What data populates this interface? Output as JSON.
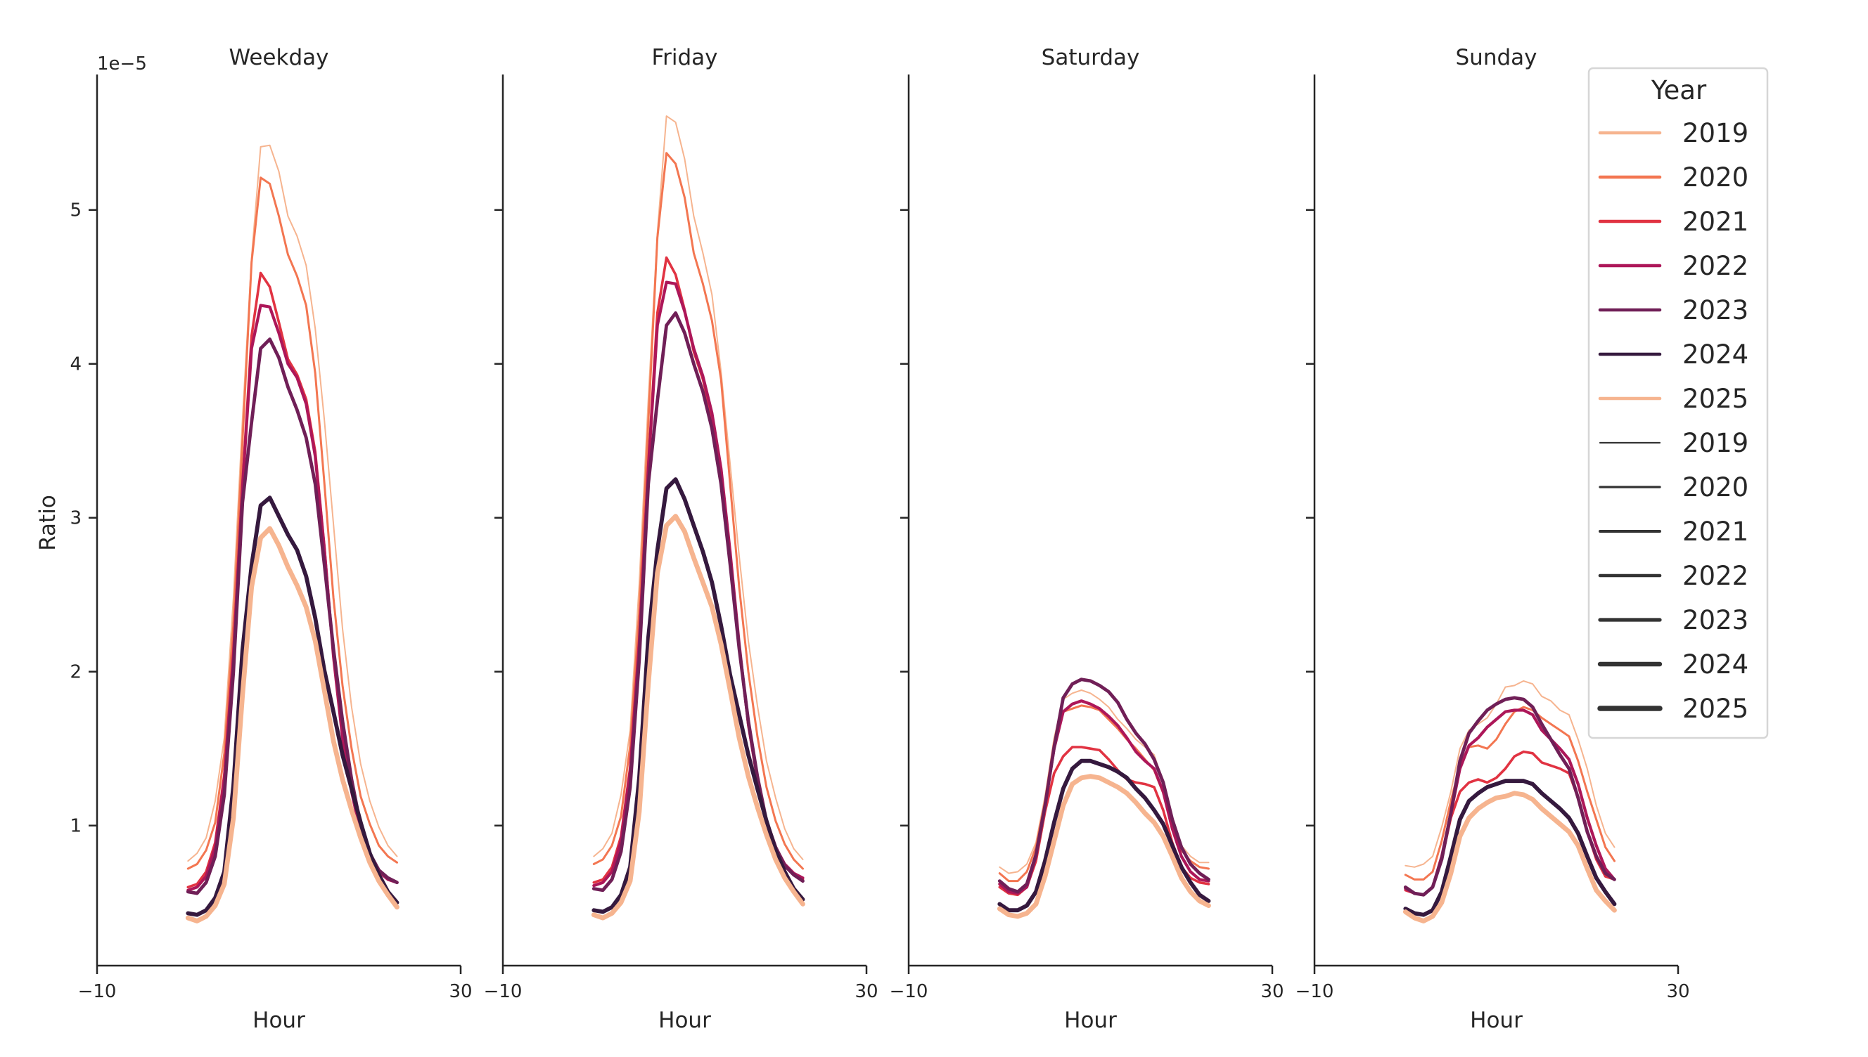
{
  "chart_data": {
    "type": "line",
    "xlabel": "Hour",
    "ylabel": "Ratio",
    "y_offset_label": "1e−5",
    "xlim": [
      -10,
      30
    ],
    "ylim": [
      0.09,
      5.88
    ],
    "xticks": [
      -10,
      30
    ],
    "xtick_labels": [
      "−10",
      "30"
    ],
    "yticks": [
      1,
      2,
      3,
      4,
      5
    ],
    "ytick_labels": [
      "1",
      "2",
      "3",
      "4",
      "5"
    ],
    "grid": false,
    "legend_placement": "right",
    "x": [
      0,
      1,
      2,
      3,
      4,
      5,
      6,
      7,
      8,
      9,
      10,
      11,
      12,
      13,
      14,
      15,
      16,
      17,
      18,
      19,
      20,
      21,
      22,
      23
    ],
    "legend": {
      "title": "Year",
      "color_entries": [
        "2019",
        "2020",
        "2021",
        "2022",
        "2023",
        "2024",
        "2025"
      ],
      "size_entries": [
        "2019",
        "2020",
        "2021",
        "2022",
        "2023",
        "2024",
        "2025"
      ],
      "line_color": "#333333"
    },
    "colors": {
      "2019": "#f6b48f",
      "2020": "#f37651",
      "2021": "#e13342",
      "2022": "#ad1759",
      "2023": "#701f57",
      "2024": "#35193e",
      "2025": "#f6b48f"
    },
    "panels": [
      {
        "title": "Weekday",
        "series": [
          {
            "name": "2019",
            "values": [
              0.77,
              0.82,
              0.92,
              1.16,
              1.57,
              2.48,
              3.64,
              4.69,
              5.41,
              5.42,
              5.25,
              4.96,
              4.83,
              4.64,
              4.23,
              3.64,
              2.96,
              2.28,
              1.77,
              1.4,
              1.16,
              0.99,
              0.87,
              0.8
            ]
          },
          {
            "name": "2020",
            "values": [
              0.72,
              0.75,
              0.84,
              1.02,
              1.47,
              2.31,
              3.5,
              4.66,
              5.21,
              5.17,
              4.96,
              4.71,
              4.57,
              4.38,
              3.94,
              3.23,
              2.48,
              1.91,
              1.5,
              1.19,
              1.01,
              0.87,
              0.8,
              0.76
            ]
          },
          {
            "name": "2021",
            "values": [
              0.6,
              0.62,
              0.7,
              0.89,
              1.33,
              2.14,
              3.23,
              4.18,
              4.59,
              4.5,
              4.27,
              4.03,
              3.93,
              3.77,
              3.43,
              2.82,
              2.11,
              1.58,
              1.23,
              0.96,
              0.8,
              0.7,
              0.65,
              0.63
            ]
          },
          {
            "name": "2022",
            "values": [
              0.58,
              0.6,
              0.67,
              0.86,
              1.3,
              2.1,
              3.2,
              4.1,
              4.38,
              4.37,
              4.2,
              4.0,
              3.91,
              3.74,
              3.4,
              2.8,
              2.1,
              1.57,
              1.22,
              0.95,
              0.8,
              0.7,
              0.65,
              0.63
            ]
          },
          {
            "name": "2023",
            "values": [
              0.57,
              0.56,
              0.63,
              0.8,
              1.2,
              2.0,
              3.1,
              3.62,
              4.1,
              4.16,
              4.04,
              3.85,
              3.7,
              3.52,
              3.22,
              2.7,
              2.15,
              1.68,
              1.3,
              1.0,
              0.82,
              0.71,
              0.66,
              0.63
            ]
          },
          {
            "name": "2024",
            "values": [
              0.43,
              0.42,
              0.45,
              0.53,
              0.7,
              1.26,
              2.14,
              2.69,
              3.08,
              3.13,
              3.01,
              2.89,
              2.79,
              2.62,
              2.35,
              2.01,
              1.74,
              1.46,
              1.24,
              1.02,
              0.82,
              0.68,
              0.57,
              0.5
            ]
          },
          {
            "name": "2025",
            "values": [
              0.4,
              0.38,
              0.41,
              0.48,
              0.62,
              1.05,
              1.85,
              2.55,
              2.87,
              2.93,
              2.82,
              2.68,
              2.56,
              2.42,
              2.2,
              1.88,
              1.55,
              1.3,
              1.1,
              0.92,
              0.76,
              0.64,
              0.55,
              0.47
            ]
          }
        ]
      },
      {
        "title": "Friday",
        "series": [
          {
            "name": "2019",
            "values": [
              0.8,
              0.85,
              0.95,
              1.2,
              1.62,
              2.57,
              3.77,
              4.85,
              5.61,
              5.57,
              5.33,
              4.96,
              4.72,
              4.45,
              3.95,
              3.35,
              2.75,
              2.2,
              1.78,
              1.42,
              1.18,
              0.98,
              0.85,
              0.78
            ]
          },
          {
            "name": "2020",
            "values": [
              0.75,
              0.78,
              0.87,
              1.06,
              1.52,
              2.39,
              3.62,
              4.82,
              5.37,
              5.3,
              5.08,
              4.72,
              4.52,
              4.28,
              3.9,
              3.22,
              2.55,
              2.0,
              1.58,
              1.25,
              1.03,
              0.88,
              0.78,
              0.72
            ]
          },
          {
            "name": "2021",
            "values": [
              0.63,
              0.65,
              0.73,
              0.93,
              1.38,
              2.22,
              3.35,
              4.33,
              4.69,
              4.58,
              4.35,
              4.08,
              3.9,
              3.65,
              3.28,
              2.75,
              2.15,
              1.65,
              1.3,
              1.02,
              0.85,
              0.74,
              0.68,
              0.65
            ]
          },
          {
            "name": "2022",
            "values": [
              0.61,
              0.63,
              0.7,
              0.9,
              1.35,
              2.18,
              3.32,
              4.25,
              4.53,
              4.52,
              4.34,
              4.1,
              3.92,
              3.68,
              3.32,
              2.78,
              2.18,
              1.66,
              1.3,
              1.02,
              0.86,
              0.75,
              0.69,
              0.66
            ]
          },
          {
            "name": "2023",
            "values": [
              0.59,
              0.58,
              0.65,
              0.83,
              1.25,
              2.08,
              3.22,
              3.76,
              4.25,
              4.33,
              4.2,
              4.0,
              3.82,
              3.58,
              3.22,
              2.7,
              2.15,
              1.68,
              1.32,
              1.03,
              0.86,
              0.74,
              0.68,
              0.64
            ]
          },
          {
            "name": "2024",
            "values": [
              0.45,
              0.44,
              0.47,
              0.55,
              0.73,
              1.31,
              2.22,
              2.79,
              3.19,
              3.25,
              3.12,
              2.95,
              2.78,
              2.58,
              2.3,
              1.98,
              1.72,
              1.46,
              1.24,
              1.03,
              0.84,
              0.7,
              0.59,
              0.52
            ]
          },
          {
            "name": "2025",
            "values": [
              0.42,
              0.4,
              0.43,
              0.5,
              0.64,
              1.09,
              1.92,
              2.64,
              2.95,
              3.01,
              2.91,
              2.74,
              2.58,
              2.42,
              2.18,
              1.88,
              1.57,
              1.32,
              1.12,
              0.94,
              0.78,
              0.66,
              0.57,
              0.49
            ]
          }
        ]
      },
      {
        "title": "Saturday",
        "series": [
          {
            "name": "2019",
            "values": [
              0.73,
              0.69,
              0.7,
              0.75,
              0.89,
              1.19,
              1.57,
              1.82,
              1.86,
              1.88,
              1.86,
              1.82,
              1.77,
              1.69,
              1.63,
              1.56,
              1.51,
              1.46,
              1.28,
              1.05,
              0.87,
              0.8,
              0.76,
              0.76
            ]
          },
          {
            "name": "2020",
            "values": [
              0.69,
              0.64,
              0.64,
              0.7,
              0.86,
              1.16,
              1.54,
              1.74,
              1.76,
              1.78,
              1.77,
              1.75,
              1.69,
              1.63,
              1.56,
              1.5,
              1.43,
              1.36,
              1.21,
              1.01,
              0.84,
              0.77,
              0.73,
              0.72
            ]
          },
          {
            "name": "2021",
            "values": [
              0.6,
              0.56,
              0.55,
              0.6,
              0.77,
              1.09,
              1.34,
              1.45,
              1.51,
              1.51,
              1.5,
              1.49,
              1.43,
              1.36,
              1.3,
              1.28,
              1.27,
              1.25,
              1.1,
              0.89,
              0.73,
              0.66,
              0.63,
              0.62
            ]
          },
          {
            "name": "2022",
            "values": [
              0.62,
              0.57,
              0.56,
              0.6,
              0.8,
              1.13,
              1.5,
              1.74,
              1.79,
              1.81,
              1.79,
              1.76,
              1.71,
              1.65,
              1.57,
              1.48,
              1.42,
              1.37,
              1.22,
              0.98,
              0.8,
              0.7,
              0.65,
              0.64
            ]
          },
          {
            "name": "2023",
            "values": [
              0.64,
              0.59,
              0.57,
              0.62,
              0.81,
              1.13,
              1.51,
              1.83,
              1.92,
              1.95,
              1.94,
              1.91,
              1.87,
              1.8,
              1.69,
              1.6,
              1.53,
              1.43,
              1.28,
              1.04,
              0.86,
              0.75,
              0.69,
              0.65
            ]
          },
          {
            "name": "2024",
            "values": [
              0.49,
              0.45,
              0.45,
              0.48,
              0.57,
              0.77,
              1.02,
              1.24,
              1.37,
              1.42,
              1.42,
              1.4,
              1.38,
              1.35,
              1.31,
              1.24,
              1.18,
              1.1,
              1.01,
              0.87,
              0.73,
              0.63,
              0.55,
              0.51
            ]
          },
          {
            "name": "2025",
            "values": [
              0.46,
              0.42,
              0.41,
              0.43,
              0.49,
              0.67,
              0.9,
              1.13,
              1.27,
              1.31,
              1.32,
              1.31,
              1.28,
              1.25,
              1.21,
              1.15,
              1.08,
              1.02,
              0.93,
              0.8,
              0.66,
              0.57,
              0.51,
              0.48
            ]
          }
        ]
      },
      {
        "title": "Sunday",
        "series": [
          {
            "name": "2019",
            "values": [
              0.74,
              0.73,
              0.75,
              0.8,
              0.99,
              1.22,
              1.5,
              1.62,
              1.66,
              1.7,
              1.79,
              1.9,
              1.91,
              1.94,
              1.92,
              1.84,
              1.81,
              1.75,
              1.72,
              1.56,
              1.37,
              1.13,
              0.95,
              0.86
            ]
          },
          {
            "name": "2020",
            "values": [
              0.68,
              0.65,
              0.65,
              0.7,
              0.9,
              1.16,
              1.39,
              1.51,
              1.52,
              1.5,
              1.56,
              1.66,
              1.74,
              1.77,
              1.75,
              1.7,
              1.66,
              1.62,
              1.58,
              1.42,
              1.22,
              1.04,
              0.86,
              0.77
            ]
          },
          {
            "name": "2021",
            "values": [
              0.58,
              0.56,
              0.55,
              0.6,
              0.78,
              1.05,
              1.22,
              1.28,
              1.3,
              1.28,
              1.31,
              1.37,
              1.45,
              1.48,
              1.47,
              1.41,
              1.39,
              1.37,
              1.34,
              1.18,
              0.96,
              0.78,
              0.67,
              0.65
            ]
          },
          {
            "name": "2022",
            "values": [
              0.59,
              0.56,
              0.55,
              0.6,
              0.8,
              1.08,
              1.37,
              1.52,
              1.57,
              1.64,
              1.69,
              1.74,
              1.75,
              1.75,
              1.72,
              1.62,
              1.56,
              1.5,
              1.43,
              1.27,
              1.05,
              0.87,
              0.72,
              0.65
            ]
          },
          {
            "name": "2023",
            "values": [
              0.6,
              0.56,
              0.55,
              0.6,
              0.78,
              1.08,
              1.42,
              1.6,
              1.68,
              1.75,
              1.79,
              1.82,
              1.83,
              1.82,
              1.77,
              1.66,
              1.56,
              1.46,
              1.37,
              1.18,
              0.96,
              0.8,
              0.69,
              0.65
            ]
          },
          {
            "name": "2024",
            "values": [
              0.46,
              0.43,
              0.42,
              0.45,
              0.57,
              0.8,
              1.04,
              1.16,
              1.21,
              1.25,
              1.27,
              1.29,
              1.29,
              1.29,
              1.27,
              1.21,
              1.16,
              1.11,
              1.05,
              0.95,
              0.8,
              0.66,
              0.57,
              0.49
            ]
          },
          {
            "name": "2025",
            "values": [
              0.44,
              0.4,
              0.38,
              0.41,
              0.5,
              0.69,
              0.93,
              1.05,
              1.11,
              1.15,
              1.18,
              1.19,
              1.21,
              1.2,
              1.17,
              1.11,
              1.06,
              1.01,
              0.96,
              0.87,
              0.72,
              0.58,
              0.51,
              0.45
            ]
          }
        ]
      }
    ]
  }
}
